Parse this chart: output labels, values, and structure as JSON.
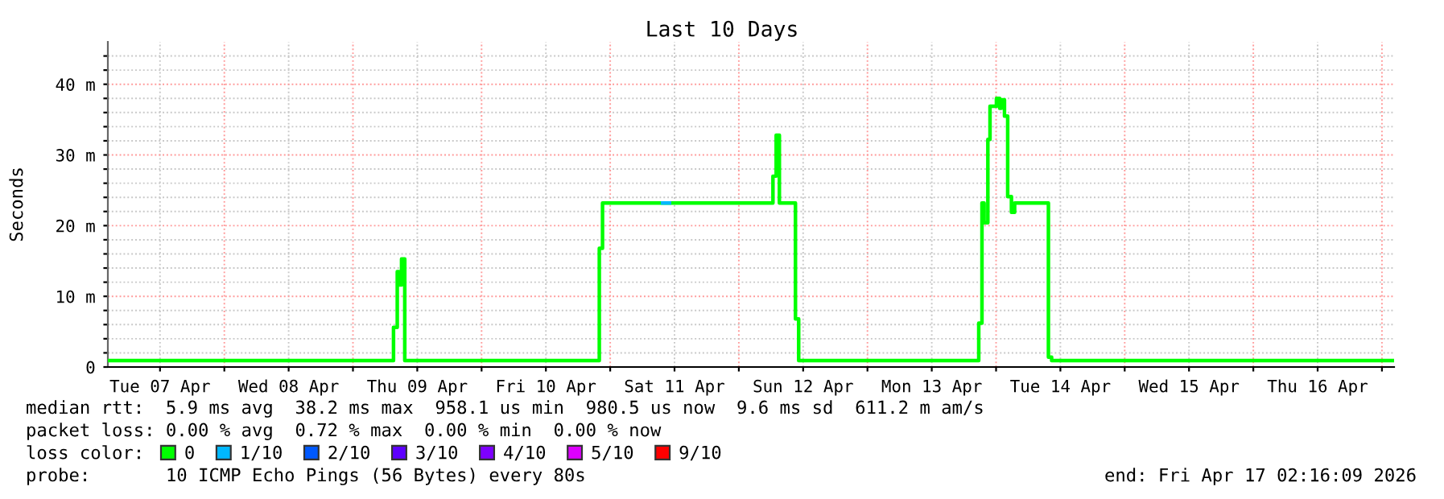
{
  "chart_data": {
    "type": "step",
    "title": "Last 10 Days",
    "ylabel": "Seconds",
    "legend_title": "loss color:",
    "legend": "bottom",
    "grid": true,
    "line_style": "solid",
    "marker": "none",
    "xlim": [
      "2026-04-07T02:16",
      "2026-04-17T02:16"
    ],
    "xticks": [
      {
        "value": "2026-04-07T12:00",
        "label": "Tue 07 Apr"
      },
      {
        "value": "2026-04-08T00:00",
        "label": null
      },
      {
        "value": "2026-04-08T12:00",
        "label": "Wed 08 Apr"
      },
      {
        "value": "2026-04-09T00:00",
        "label": null
      },
      {
        "value": "2026-04-09T12:00",
        "label": "Thu 09 Apr"
      },
      {
        "value": "2026-04-10T00:00",
        "label": null
      },
      {
        "value": "2026-04-10T12:00",
        "label": "Fri 10 Apr"
      },
      {
        "value": "2026-04-11T00:00",
        "label": null
      },
      {
        "value": "2026-04-11T12:00",
        "label": "Sat 11 Apr"
      },
      {
        "value": "2026-04-12T00:00",
        "label": null
      },
      {
        "value": "2026-04-12T12:00",
        "label": "Sun 12 Apr"
      },
      {
        "value": "2026-04-13T00:00",
        "label": null
      },
      {
        "value": "2026-04-13T12:00",
        "label": "Mon 13 Apr"
      },
      {
        "value": "2026-04-14T00:00",
        "label": null
      },
      {
        "value": "2026-04-14T12:00",
        "label": "Tue 14 Apr"
      },
      {
        "value": "2026-04-15T00:00",
        "label": null
      },
      {
        "value": "2026-04-15T12:00",
        "label": "Wed 15 Apr"
      },
      {
        "value": "2026-04-16T00:00",
        "label": null
      },
      {
        "value": "2026-04-16T12:00",
        "label": "Thu 16 Apr"
      },
      {
        "value": "2026-04-17T00:00",
        "label": null
      }
    ],
    "ylim": [
      0,
      46
    ],
    "yticks": [
      0,
      {
        "value": 2,
        "label": null
      },
      {
        "value": 4,
        "label": null
      },
      {
        "value": 6,
        "label": null
      },
      {
        "value": 8,
        "label": null
      },
      {
        "value": 10,
        "label": "10 m"
      },
      {
        "value": 12,
        "label": null
      },
      {
        "value": 14,
        "label": null
      },
      {
        "value": 16,
        "label": null
      },
      {
        "value": 18,
        "label": null
      },
      {
        "value": 20,
        "label": "20 m"
      },
      {
        "value": 22,
        "label": null
      },
      {
        "value": 24,
        "label": null
      },
      {
        "value": 26,
        "label": null
      },
      {
        "value": 28,
        "label": null
      },
      {
        "value": 30,
        "label": "30 m"
      },
      {
        "value": 32,
        "label": null
      },
      {
        "value": 34,
        "label": null
      },
      {
        "value": 36,
        "label": null
      },
      {
        "value": 38,
        "label": null
      },
      {
        "value": 40,
        "label": "40 m"
      },
      {
        "value": 42,
        "label": null
      },
      {
        "value": 44,
        "label": null
      }
    ],
    "series": [
      {
        "name": "0",
        "color": "#00ff00",
        "x": [
          "2026-04-07T02:16",
          "2026-04-09T07:34",
          "2026-04-09T08:16",
          "2026-04-09T08:34",
          "2026-04-09T09:04",
          "2026-04-09T09:40",
          "2026-04-10T21:58",
          "2026-04-10T22:34",
          "2026-04-12T06:22",
          "2026-04-12T06:58",
          "2026-04-12T07:34",
          "2026-04-12T10:34",
          "2026-04-12T11:10",
          "2026-04-13T20:46",
          "2026-04-13T21:22",
          "2026-04-13T21:46",
          "2026-04-13T22:28",
          "2026-04-13T22:52",
          "2026-04-14T00:04",
          "2026-04-14T00:40",
          "2026-04-14T00:58",
          "2026-04-14T01:34",
          "2026-04-14T02:10",
          "2026-04-14T02:52",
          "2026-04-14T03:28",
          "2026-04-14T09:46",
          "2026-04-14T10:22",
          "2026-04-17T02:16"
        ],
        "values": [
          0.9,
          5.6,
          13.5,
          11.6,
          15.3,
          0.9,
          16.8,
          23.2,
          27,
          32.8,
          23.2,
          6.8,
          0.9,
          6.2,
          23.2,
          20.4,
          32.2,
          36.9,
          38,
          36.6,
          37.8,
          35.5,
          24.1,
          21.9,
          23.2,
          1.4,
          0.9,
          0.9
        ]
      },
      {
        "name": "1/10",
        "color": "#00b8ff",
        "x": [
          "2026-04-11T09:46",
          "2026-04-11T11:04"
        ],
        "values": [
          23.2,
          23.2
        ]
      },
      {
        "name": "2/10",
        "color": "#0059ff"
      },
      {
        "name": "3/10",
        "color": "#5e00ff"
      },
      {
        "name": "4/10",
        "color": "#7e00ff"
      },
      {
        "name": "5/10",
        "color": "#dd00ff"
      },
      {
        "name": "9/10",
        "color": "#ff0000"
      }
    ],
    "annotations": [
      "median rtt:  5.9 ms avg  38.2 ms max  958.1 us min  980.5 us now  9.6 ms sd  611.2 m am/s",
      "packet loss: 0.00 % avg  0.72 % max  0.00 % min  0.00 % now",
      "probe:       10 ICMP Echo Pings (56 Bytes) every 80s",
      "end: Fri Apr 17 02:16:09 2026"
    ]
  }
}
